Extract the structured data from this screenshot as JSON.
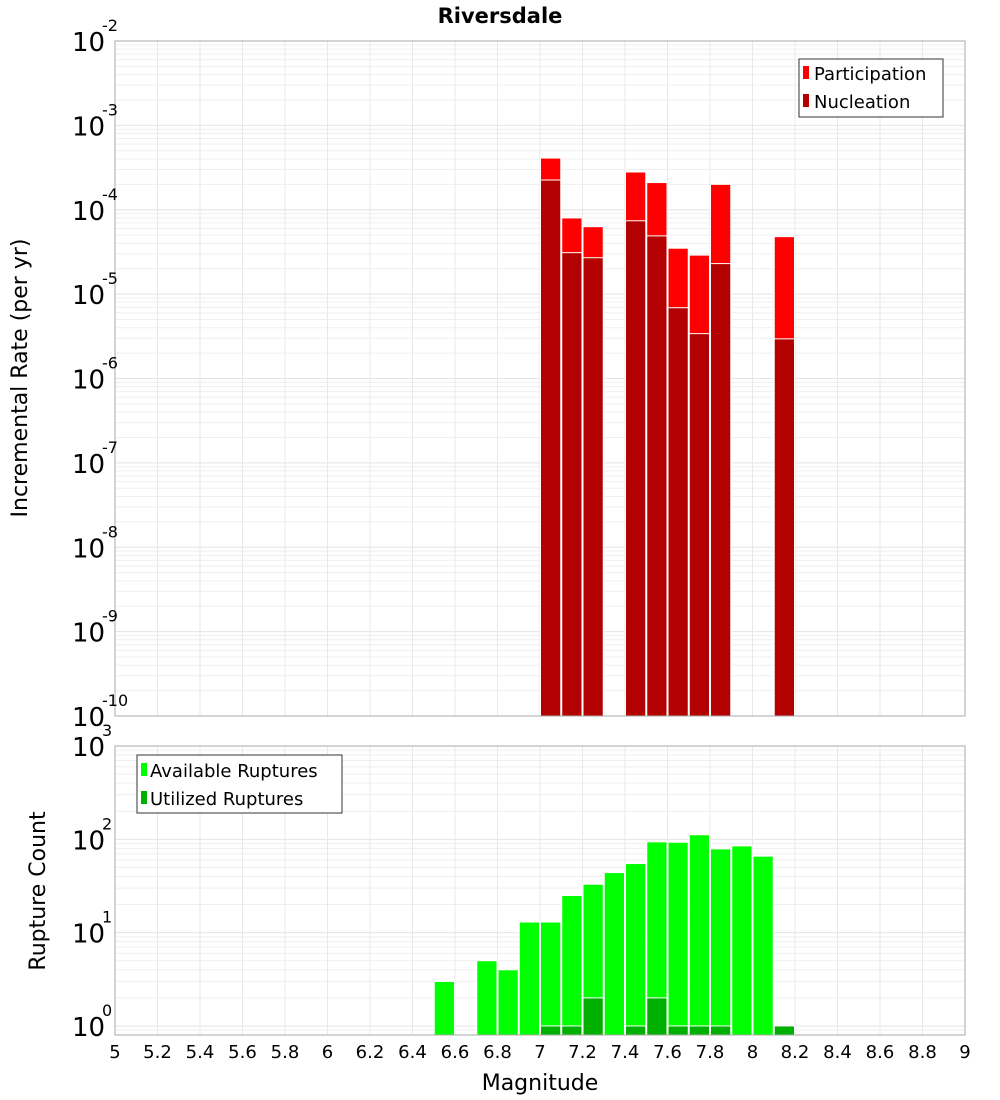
{
  "chart_data": [
    {
      "type": "bar",
      "title": "Riversdale",
      "xlabel": "",
      "ylabel": "Incremental Rate (per yr)",
      "yscale": "log",
      "xlim": [
        5,
        9
      ],
      "ylim": [
        1e-10,
        0.01
      ],
      "bin_width": 0.1,
      "grid": true,
      "legend_position": "top-right",
      "y_tick_exponents": [
        -10,
        -9,
        -8,
        -7,
        -6,
        -5,
        -4,
        -3,
        -2
      ],
      "x": [
        7.05,
        7.15,
        7.25,
        7.45,
        7.55,
        7.65,
        7.75,
        7.85,
        8.15
      ],
      "series": [
        {
          "name": "Participation",
          "color": "#ff0000",
          "values": [
            0.00041,
            8e-05,
            6.3e-05,
            0.00028,
            0.00021,
            3.5e-05,
            2.9e-05,
            0.0002,
            4.8e-05
          ]
        },
        {
          "name": "Nucleation",
          "color": "#b30000",
          "values": [
            0.000225,
            3.1e-05,
            2.7e-05,
            7.4e-05,
            4.9e-05,
            6.9e-06,
            3.4e-06,
            2.3e-05,
            2.95e-06
          ]
        }
      ]
    },
    {
      "type": "bar",
      "title": "",
      "xlabel": "Magnitude",
      "ylabel": "Rupture Count",
      "yscale": "log",
      "xlim": [
        5,
        9
      ],
      "ylim": [
        0.8,
        1000
      ],
      "bin_width": 0.1,
      "grid": true,
      "legend_position": "top-left",
      "y_tick_exponents": [
        0,
        1,
        2,
        3
      ],
      "x_ticks": [
        "5",
        "5.2",
        "5.4",
        "5.6",
        "5.8",
        "6",
        "6.2",
        "6.4",
        "6.6",
        "6.8",
        "7",
        "7.2",
        "7.4",
        "7.6",
        "7.8",
        "8",
        "8.2",
        "8.4",
        "8.6",
        "8.8",
        "9"
      ],
      "series": [
        {
          "name": "Available Ruptures",
          "color": "#00ff00",
          "x": [
            6.55,
            6.75,
            6.85,
            6.95,
            7.05,
            7.15,
            7.25,
            7.35,
            7.45,
            7.55,
            7.65,
            7.75,
            7.85,
            7.95,
            8.05,
            8.15
          ],
          "values": [
            3,
            5,
            4,
            13,
            13,
            25,
            33,
            44,
            55,
            94,
            93,
            112,
            79,
            85,
            66,
            1
          ]
        },
        {
          "name": "Utilized Ruptures",
          "color": "#00b000",
          "x": [
            7.05,
            7.15,
            7.25,
            7.45,
            7.55,
            7.65,
            7.75,
            7.85,
            8.15
          ],
          "values": [
            1,
            1,
            2,
            1,
            2,
            1,
            1,
            1,
            1
          ]
        }
      ]
    }
  ]
}
